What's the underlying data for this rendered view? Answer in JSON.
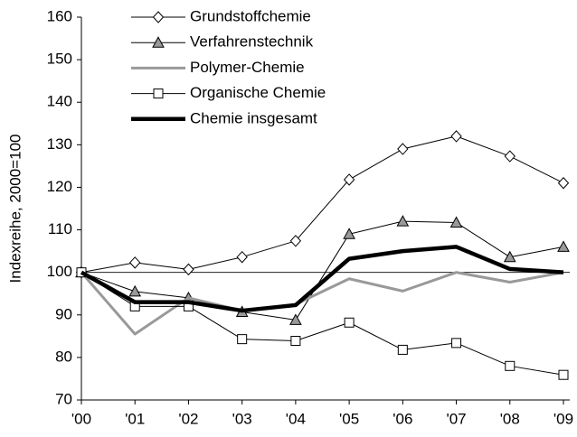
{
  "chart_data": {
    "type": "line",
    "y_label": "Indexreihe, 2000=100",
    "categories": [
      "'00",
      "'01",
      "'02",
      "'03",
      "'04",
      "'05",
      "'06",
      "'07",
      "'08",
      "'09"
    ],
    "series": [
      {
        "name": "Grundstoffchemie",
        "color": "#000000",
        "marker": "diamond",
        "line_width": 1,
        "values": [
          100,
          102.3,
          100.7,
          103.6,
          107.4,
          121.8,
          129,
          132,
          127.3,
          121
        ]
      },
      {
        "name": "Verfahrenstechnik",
        "color": "#000000",
        "marker": "triangle",
        "line_width": 1,
        "values": [
          100,
          95.5,
          94,
          90.7,
          88.8,
          109,
          112,
          111.7,
          103.6,
          106
        ]
      },
      {
        "name": "Polymer-Chemie",
        "color": "#999999",
        "marker": "none",
        "line_width": 3,
        "values": [
          100,
          85.5,
          94,
          91,
          92.5,
          98.5,
          95.6,
          100,
          97.7,
          100
        ]
      },
      {
        "name": "Organische Chemie",
        "color": "#000000",
        "marker": "square",
        "line_width": 1,
        "values": [
          100,
          92,
          92,
          84.3,
          83.9,
          88.2,
          81.8,
          83.4,
          78,
          75.9
        ]
      },
      {
        "name": "Chemie insgesamt",
        "color": "#000000",
        "marker": "none",
        "line_width": 4.5,
        "values": [
          100,
          93,
          93,
          91,
          92.3,
          103.2,
          105,
          106,
          100.8,
          100
        ]
      }
    ],
    "reference_line": 100,
    "ylim": [
      70,
      160
    ],
    "yticks": [
      70,
      80,
      90,
      100,
      110,
      120,
      130,
      140,
      150,
      160
    ],
    "grid": false,
    "legend": "upper-left"
  }
}
